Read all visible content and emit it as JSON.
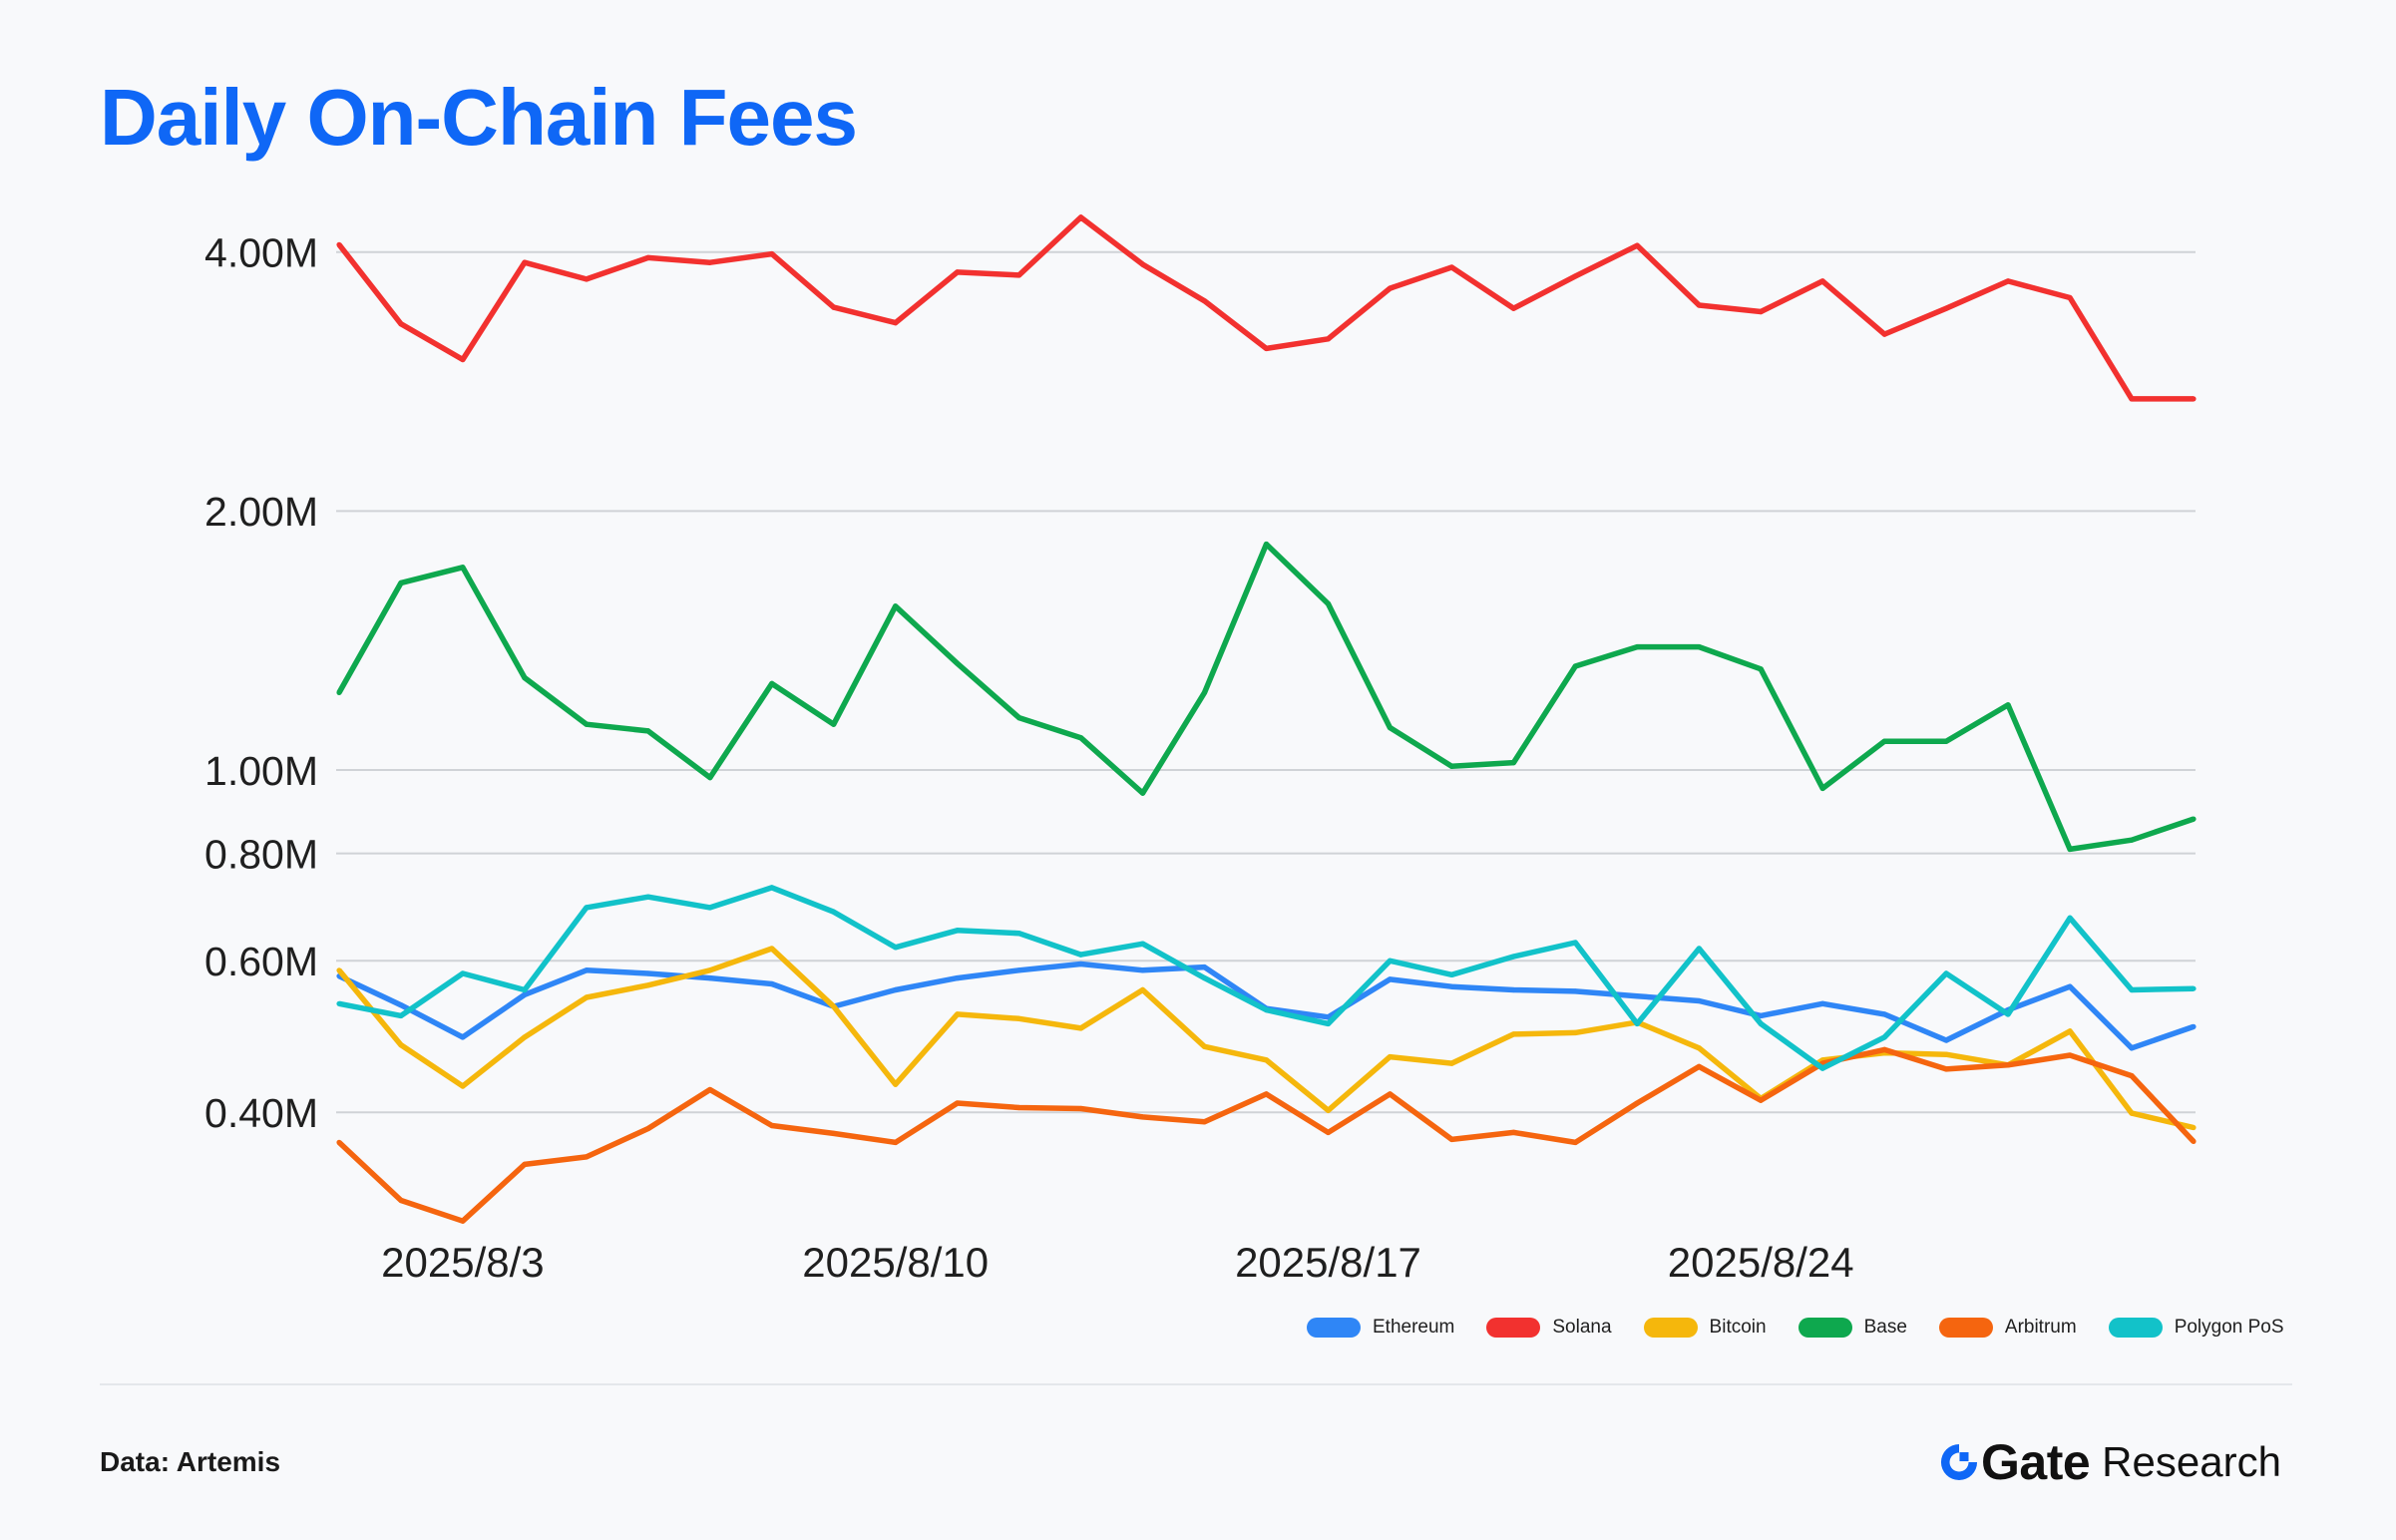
{
  "theme": {
    "background": "#f8f9fb",
    "title_color": "#0f67f6",
    "grid_color": "#d0d3d7",
    "text_color": "#1f1f1f"
  },
  "chart_data": {
    "type": "line",
    "title": "Daily On-Chain Fees",
    "y_scale": "log",
    "ylim": [
      0.28,
      4.5
    ],
    "y_ticks": [
      {
        "value": 4,
        "label": "4.00M"
      },
      {
        "value": 2,
        "label": "2.00M"
      },
      {
        "value": 1,
        "label": "1.00M"
      },
      {
        "value": 0.8,
        "label": "0.80M"
      },
      {
        "value": 0.6,
        "label": "0.60M"
      },
      {
        "value": 0.4,
        "label": "0.40M"
      }
    ],
    "x": [
      "2025/8/1",
      "2025/8/2",
      "2025/8/3",
      "2025/8/4",
      "2025/8/5",
      "2025/8/6",
      "2025/8/7",
      "2025/8/8",
      "2025/8/9",
      "2025/8/10",
      "2025/8/11",
      "2025/8/12",
      "2025/8/13",
      "2025/8/14",
      "2025/8/15",
      "2025/8/16",
      "2025/8/17",
      "2025/8/18",
      "2025/8/19",
      "2025/8/20",
      "2025/8/21",
      "2025/8/22",
      "2025/8/23",
      "2025/8/24",
      "2025/8/25",
      "2025/8/26",
      "2025/8/27",
      "2025/8/28",
      "2025/8/29",
      "2025/8/30",
      "2025/8/31"
    ],
    "x_ticks": [
      "2025/8/3",
      "2025/8/10",
      "2025/8/17",
      "2025/8/24"
    ],
    "grid": "horizontal",
    "legend": "bottom-right",
    "series": [
      {
        "name": "Ethereum",
        "color": "#2f86f6",
        "values": [
          0.576,
          0.533,
          0.489,
          0.548,
          0.585,
          0.58,
          0.573,
          0.564,
          0.531,
          0.555,
          0.573,
          0.585,
          0.595,
          0.585,
          0.59,
          0.528,
          0.516,
          0.571,
          0.56,
          0.555,
          0.553,
          0.546,
          0.539,
          0.518,
          0.535,
          0.52,
          0.485,
          0.526,
          0.56,
          0.475,
          0.503
        ]
      },
      {
        "name": "Solana",
        "color": "#f2312f",
        "values": [
          4.08,
          3.3,
          3.0,
          3.89,
          3.72,
          3.94,
          3.89,
          3.98,
          3.45,
          3.31,
          3.79,
          3.76,
          4.39,
          3.87,
          3.51,
          3.09,
          3.17,
          3.63,
          3.84,
          3.44,
          3.75,
          4.07,
          3.47,
          3.41,
          3.7,
          3.21,
          3.44,
          3.7,
          3.54,
          2.7,
          2.7
        ]
      },
      {
        "name": "Bitcoin",
        "color": "#f5b70c",
        "values": [
          0.585,
          0.479,
          0.429,
          0.489,
          0.544,
          0.562,
          0.585,
          0.62,
          0.531,
          0.431,
          0.52,
          0.514,
          0.501,
          0.555,
          0.477,
          0.46,
          0.402,
          0.464,
          0.456,
          0.493,
          0.495,
          0.509,
          0.475,
          0.415,
          0.46,
          0.469,
          0.467,
          0.454,
          0.497,
          0.399,
          0.384
        ]
      },
      {
        "name": "Base",
        "color": "#0ea84e",
        "values": [
          1.23,
          1.65,
          1.72,
          1.28,
          1.13,
          1.11,
          0.98,
          1.26,
          1.13,
          1.55,
          1.33,
          1.15,
          1.09,
          0.94,
          1.23,
          1.83,
          1.56,
          1.12,
          1.01,
          1.02,
          1.32,
          1.39,
          1.39,
          1.31,
          0.952,
          1.08,
          1.08,
          1.19,
          0.809,
          0.829,
          0.877
        ]
      },
      {
        "name": "Arbitrum",
        "color": "#f5650f",
        "values": [
          0.369,
          0.316,
          0.299,
          0.348,
          0.355,
          0.383,
          0.425,
          0.386,
          0.378,
          0.369,
          0.41,
          0.405,
          0.404,
          0.395,
          0.39,
          0.42,
          0.379,
          0.42,
          0.372,
          0.379,
          0.369,
          0.41,
          0.452,
          0.413,
          0.456,
          0.473,
          0.449,
          0.454,
          0.466,
          0.441,
          0.37
        ]
      },
      {
        "name": "Polygon PoS",
        "color": "#12c2c9",
        "values": [
          0.535,
          0.518,
          0.58,
          0.555,
          0.692,
          0.712,
          0.692,
          0.73,
          0.684,
          0.622,
          0.651,
          0.646,
          0.61,
          0.628,
          0.573,
          0.526,
          0.507,
          0.6,
          0.578,
          0.607,
          0.63,
          0.507,
          0.62,
          0.507,
          0.45,
          0.489,
          0.58,
          0.52,
          0.673,
          0.555,
          0.557
        ]
      }
    ]
  },
  "footer": {
    "source": "Data: Artemis",
    "logo": {
      "icon": "gate-logo-icon",
      "brand": "Gate",
      "suffix": "Research",
      "color": "#0f67f6"
    }
  }
}
